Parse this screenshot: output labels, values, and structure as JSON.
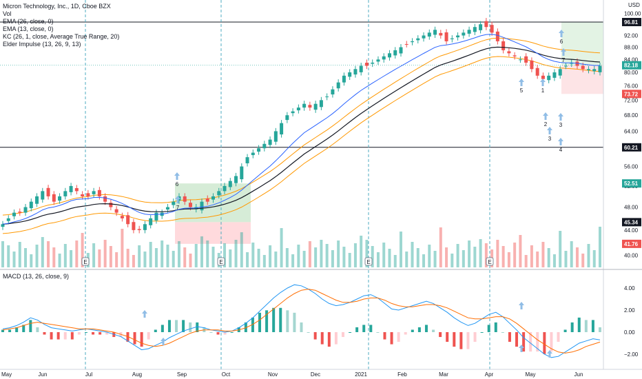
{
  "legend": {
    "title": "Micron Technology, Inc., 1D, Cboe BZX",
    "vol": "Vol",
    "ema26": "EMA (26, close, 0)",
    "ema13": "EMA (13, close, 0)",
    "kc": "KC (26, 1, close, Average True Range, 20)",
    "elder": "Elder Impulse (13, 26, 9, 13)",
    "macd": "MACD (13, 26, close, 9)"
  },
  "colors": {
    "up": "#26a69a",
    "down": "#ef5350",
    "ema26": "#131722",
    "ema13": "#2962ff",
    "kc": "#ff9800",
    "green_zone": "#c8e6c9",
    "red_zone": "#ffcdd2",
    "vline": "#4dabc0",
    "arrow": "#90bde6"
  },
  "chart_data": [
    {
      "type": "candlestick",
      "title": "Micron Technology, Inc., 1D, Cboe BZX",
      "currency": "USD",
      "ylim": [
        38,
        102
      ],
      "y_scale": "log",
      "y_ticks": [
        40,
        44,
        48,
        52,
        56,
        60,
        64,
        68,
        72,
        76,
        80,
        84,
        88,
        92,
        96,
        100
      ],
      "x_labels": [
        "May",
        "Jun",
        "Jul",
        "Aug",
        "Sep",
        "Oct",
        "Nov",
        "Dec",
        "2021",
        "Feb",
        "Mar",
        "Apr",
        "May",
        "Jun"
      ],
      "price_tags": [
        {
          "value": 96.81,
          "label": "96.81",
          "color": "#131722"
        },
        {
          "value": 82.18,
          "label": "82.18",
          "color": "#26a69a"
        },
        {
          "value": 73.72,
          "label": "73.72",
          "color": "#ef5350"
        },
        {
          "value": 60.21,
          "label": "60.21",
          "color": "#131722"
        },
        {
          "value": 52.51,
          "label": "52.51",
          "color": "#26a69a"
        },
        {
          "value": 45.34,
          "label": "45.34",
          "color": "#131722"
        },
        {
          "value": 41.76,
          "label": "41.76",
          "color": "#ef5350"
        }
      ],
      "horizontal_lines": [
        96.81,
        60.21
      ],
      "earnings_markers": [
        "E",
        "E",
        "E",
        "E"
      ],
      "wave_labels": [
        "6",
        "6",
        "7",
        "7",
        "1",
        "2",
        "3",
        "3",
        "4",
        "5"
      ],
      "close_series": [
        45,
        46,
        47,
        47,
        48,
        49,
        50,
        51,
        50,
        49,
        50,
        51,
        52,
        51,
        50,
        50,
        51,
        50,
        49,
        48,
        47,
        46,
        45,
        44,
        44,
        45,
        46,
        47,
        47,
        48,
        49,
        50,
        49,
        48,
        48,
        49,
        49,
        50,
        51,
        52,
        53,
        54,
        56,
        58,
        59,
        60,
        61,
        62,
        64,
        66,
        68,
        69,
        70,
        71,
        70,
        71,
        72,
        73,
        75,
        77,
        79,
        80,
        81,
        82,
        82,
        83,
        84,
        85,
        86,
        87,
        88,
        89,
        90,
        91,
        92,
        93,
        94,
        92,
        90,
        91,
        92,
        93,
        94,
        95,
        96,
        95,
        93,
        90,
        87,
        86,
        85,
        84,
        83,
        81,
        79,
        78,
        79,
        80,
        81,
        82,
        83,
        82,
        81,
        81,
        81,
        82
      ]
    },
    {
      "type": "macd",
      "title": "MACD (13, 26, close, 9)",
      "ylim": [
        -3,
        5
      ],
      "y_ticks": [
        4,
        2,
        0,
        -2
      ],
      "y_tick_labels": [
        "4.00",
        "2.00",
        "0.00",
        "−2.00"
      ],
      "macd_series": [
        0.3,
        0.4,
        0.6,
        0.9,
        1.3,
        1.1,
        0.7,
        0.4,
        0.3,
        0.2,
        0.1,
        0.2,
        0.3,
        0.2,
        0.1,
        0.0,
        -0.2,
        -0.4,
        -0.8,
        -1.2,
        -1.6,
        -1.5,
        -1.2,
        -0.9,
        -0.5,
        -0.2,
        0.1,
        0.3,
        0.5,
        0.4,
        0.2,
        0.1,
        0.0,
        0.1,
        0.4,
        0.8,
        1.3,
        1.9,
        2.5,
        3.1,
        3.6,
        4.0,
        4.3,
        4.2,
        3.9,
        3.5,
        3.0,
        2.6,
        2.4,
        2.5,
        2.7,
        3.0,
        3.3,
        3.4,
        3.1,
        2.6,
        2.1,
        2.0,
        2.2,
        2.4,
        2.6,
        2.8,
        2.6,
        2.2,
        1.8,
        1.3,
        0.9,
        0.6,
        0.8,
        1.2,
        1.6,
        1.8,
        1.4,
        0.8,
        0.2,
        -0.5,
        -1.0,
        -1.5,
        -2.0,
        -2.3,
        -2.2,
        -1.8,
        -1.4,
        -1.0,
        -0.8,
        -0.6,
        -0.7
      ],
      "signal_series": [
        0.2,
        0.3,
        0.4,
        0.6,
        0.8,
        0.9,
        0.8,
        0.7,
        0.6,
        0.5,
        0.4,
        0.3,
        0.3,
        0.3,
        0.2,
        0.1,
        0.0,
        -0.2,
        -0.4,
        -0.7,
        -1.0,
        -1.2,
        -1.3,
        -1.2,
        -1.0,
        -0.7,
        -0.4,
        -0.1,
        0.1,
        0.2,
        0.2,
        0.2,
        0.1,
        0.1,
        0.2,
        0.4,
        0.7,
        1.1,
        1.6,
        2.1,
        2.6,
        3.1,
        3.5,
        3.8,
        3.9,
        3.8,
        3.5,
        3.2,
        2.9,
        2.7,
        2.7,
        2.8,
        3.0,
        3.1,
        3.1,
        2.9,
        2.6,
        2.4,
        2.3,
        2.3,
        2.4,
        2.5,
        2.5,
        2.4,
        2.2,
        1.9,
        1.6,
        1.3,
        1.2,
        1.2,
        1.3,
        1.4,
        1.4,
        1.2,
        0.8,
        0.3,
        -0.2,
        -0.7,
        -1.1,
        -1.5,
        -1.8,
        -1.9,
        -1.8,
        -1.6,
        -1.3,
        -1.1,
        -0.9
      ]
    }
  ]
}
